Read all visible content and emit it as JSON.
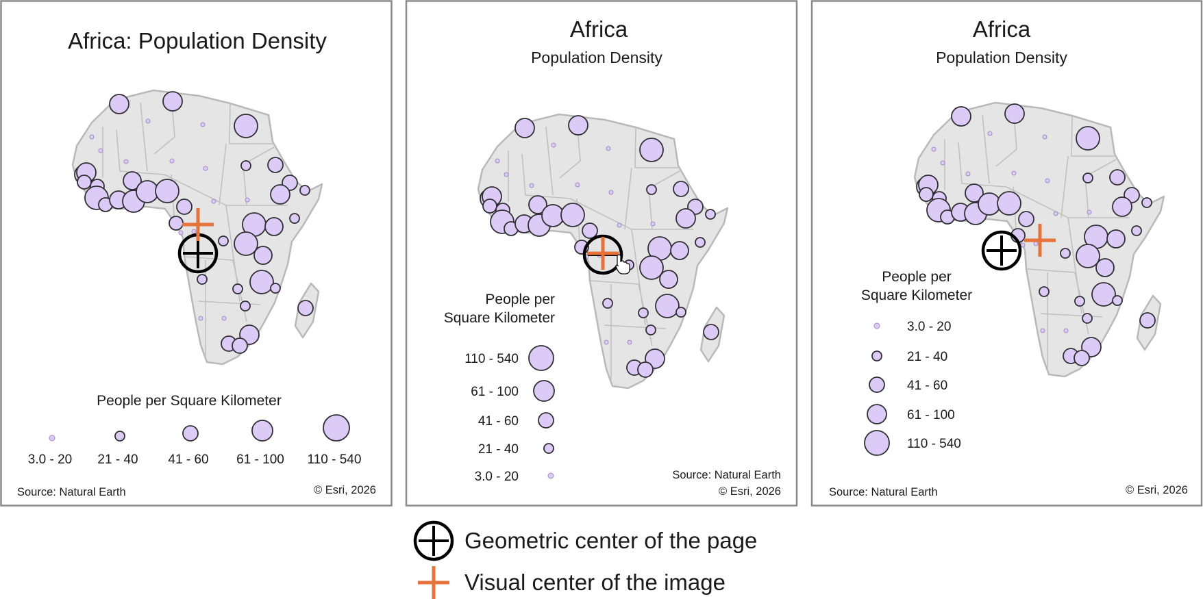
{
  "colors": {
    "bubble_fill": "#dccbf7",
    "land": "#e5e5e5",
    "geometric_center_marker": "#000000",
    "visual_center_marker": "#e8733a"
  },
  "panels": [
    {
      "title": "Africa: Population Density",
      "legend_title": "People per Square Kilometer",
      "legend_classes": [
        "3.0 - 20",
        "21 - 40",
        "41 - 60",
        "61 - 100",
        "110 - 540"
      ],
      "source": "Source: Natural Earth",
      "copyright": "© Esri, 2026"
    },
    {
      "title": "Africa",
      "subtitle": "Population Density",
      "legend_title_lines": [
        "People per",
        "Square Kilometer"
      ],
      "legend_classes": [
        "110 - 540",
        "61 - 100",
        "41 - 60",
        "21 - 40",
        "3.0 - 20"
      ],
      "source": "Source: Natural Earth",
      "copyright": "© Esri, 2026"
    },
    {
      "title": "Africa",
      "subtitle": "Population Density",
      "legend_title_lines": [
        "People per",
        "Square Kilometer"
      ],
      "legend_classes": [
        "3.0 - 20",
        "21 - 40",
        "41 - 60",
        "61 - 100",
        "110 - 540"
      ],
      "source": "Source: Natural Earth",
      "copyright": "© Esri, 2026"
    }
  ],
  "key": {
    "geometric_center": "Geometric center of the page",
    "visual_center": "Visual center of the image",
    "geometric_center_icon": "circle-crosshair",
    "visual_center_icon": "plus"
  }
}
